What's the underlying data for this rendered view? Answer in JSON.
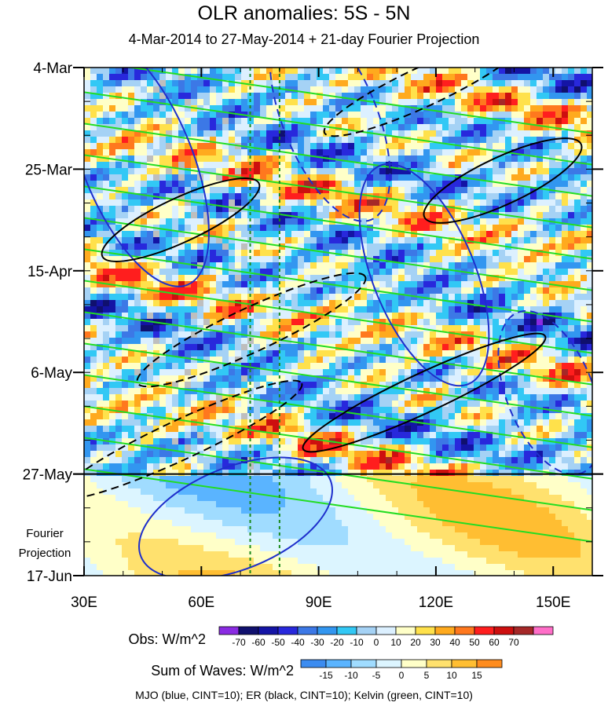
{
  "title": "OLR anomalies: 5S - 5N",
  "subtitle": "4-Mar-2014 to 27-May-2014 + 21-day Fourier Projection",
  "projection_label": [
    "Fourier",
    "Projection"
  ],
  "footer": "MJO (blue, CINT=10); ER (black, CINT=10); Kelvin (green, CINT=10)",
  "colors": {
    "mjo": "#1e2fcc",
    "er": "#000000",
    "kelvin": "#22dd22",
    "reference_lines": "#1a8a1a",
    "missing": "#bebebe"
  },
  "chart_data": {
    "type": "heatmap",
    "title": "OLR anomalies: 5S - 5N",
    "subtitle": "4-Mar-2014 to 27-May-2014 + 21-day Fourier Projection",
    "x_axis": {
      "range": [
        30,
        160
      ],
      "ticks": [
        30,
        60,
        90,
        120,
        150
      ],
      "tick_labels": [
        "30E",
        "60E",
        "90E",
        "120E",
        "150E"
      ]
    },
    "y_axis": {
      "range": [
        "2014-03-04",
        "2014-06-17"
      ],
      "ticks": [
        "2014-03-04",
        "2014-03-25",
        "2014-04-15",
        "2014-05-06",
        "2014-05-27",
        "2014-06-17"
      ],
      "tick_labels": [
        "4-Mar",
        "25-Mar",
        "15-Apr",
        "6-May",
        "27-May",
        "17-Jun"
      ],
      "reversed": true,
      "observation_end": "2014-05-27"
    },
    "reference_lines_longitude": [
      72.5,
      80
    ],
    "obs_colorbar": {
      "label": "Obs: W/m^2",
      "levels": [
        -70,
        -60,
        -50,
        -40,
        -30,
        -20,
        -10,
        0,
        10,
        20,
        30,
        40,
        50,
        60,
        70
      ],
      "colors": [
        "#8a2be2",
        "#10106e",
        "#1414a5",
        "#2828dc",
        "#3c78e6",
        "#3296f0",
        "#32c8f5",
        "#a5d2f5",
        "#dcf0ff",
        "#ffffc8",
        "#ffe14b",
        "#ffaa1e",
        "#ff781e",
        "#ff1e1e",
        "#cd0f0f",
        "#a52828",
        "#ff6ec8"
      ]
    },
    "waves_colorbar": {
      "label": "Sum of Waves: W/m^2",
      "levels": [
        -15,
        -10,
        -5,
        0,
        5,
        10,
        15
      ],
      "colors": [
        "#3c8cf0",
        "#5ab4ff",
        "#a0dcff",
        "#dcf5ff",
        "#ffffc8",
        "#ffe16e",
        "#ffbe32",
        "#ff8c1e"
      ]
    },
    "contours": {
      "MJO": {
        "color": "blue",
        "cint": 10
      },
      "ER": {
        "color": "black",
        "cint": 10
      },
      "Kelvin": {
        "color": "green",
        "cint": 10
      }
    },
    "grid": false
  }
}
